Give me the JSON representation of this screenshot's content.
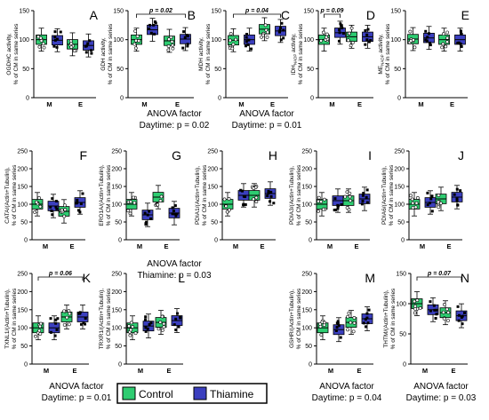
{
  "colors": {
    "control": "#2ecc71",
    "thiamine": "#3b3fbf",
    "axis": "#000000"
  },
  "legend": {
    "items": [
      {
        "label": "Control",
        "color": "#2ecc71"
      },
      {
        "label": "Thiamine",
        "color": "#3b3fbf"
      }
    ]
  },
  "anova_notes": [
    {
      "line1": "ANOVA factor",
      "line2": "Daytime: p = 0.02"
    },
    {
      "line1": "ANOVA factor",
      "line2": "Daytime: p = 0.01"
    },
    {
      "line1": "ANOVA factor",
      "line2": "Thiamine: p = 0.03"
    },
    {
      "line1": "ANOVA factor",
      "line2": "Daytime: p = 0.01"
    },
    {
      "line1": "ANOVA factor",
      "line2": "Daytime: p = 0.04"
    },
    {
      "line1": "ANOVA factor",
      "line2": "Daytime: p = 0.03"
    }
  ],
  "chart_data": [
    {
      "panel": "A",
      "type": "box",
      "ylabel": [
        "OGDHC activity,",
        "% of CM in same series"
      ],
      "categories": [
        "M",
        "E"
      ],
      "ylim": [
        0,
        150
      ],
      "yticks": [
        0,
        50,
        100,
        150
      ],
      "series": [
        {
          "name": "Control",
          "values": [
            100,
            92
          ]
        },
        {
          "name": "Thiamine",
          "values": [
            99,
            90
          ]
        }
      ],
      "sig": null
    },
    {
      "panel": "B",
      "type": "box",
      "ylabel": [
        "GDH activity,",
        "% of CM in same series"
      ],
      "categories": [
        "M",
        "E"
      ],
      "ylim": [
        0,
        150
      ],
      "yticks": [
        0,
        50,
        100,
        150
      ],
      "series": [
        {
          "name": "Control",
          "values": [
            100,
            98
          ]
        },
        {
          "name": "Thiamine",
          "values": [
            117,
            101
          ]
        }
      ],
      "sig": {
        "label": "p = 0.02",
        "from": 0,
        "to": 1
      }
    },
    {
      "panel": "C",
      "type": "box",
      "ylabel": [
        "MDH activity,",
        "% of CM in same series"
      ],
      "categories": [
        "M",
        "E"
      ],
      "ylim": [
        0,
        150
      ],
      "yticks": [
        0,
        50,
        100,
        150
      ],
      "series": [
        {
          "name": "Control",
          "values": [
            99,
            118
          ]
        },
        {
          "name": "Thiamine",
          "values": [
            100,
            115
          ]
        }
      ],
      "sig": {
        "label": "p = 0.04",
        "from": 0,
        "to": 1
      }
    },
    {
      "panel": "D",
      "type": "box",
      "ylabel": [
        "IDH",
        "% of CM in same series"
      ],
      "ylabel_sub": "NADP",
      "ylabel_tail": " activity,",
      "categories": [
        "M",
        "E"
      ],
      "ylim": [
        0,
        150
      ],
      "yticks": [
        0,
        50,
        100,
        150
      ],
      "series": [
        {
          "name": "Control",
          "values": [
            100,
            105
          ]
        },
        {
          "name": "Thiamine",
          "values": [
            112,
            105
          ]
        }
      ],
      "sig": {
        "label": "p = 0.09",
        "from": 0,
        "to": 0
      }
    },
    {
      "panel": "E",
      "type": "box",
      "ylabel": [
        "ME",
        "% of CM in same series"
      ],
      "ylabel_sub": "NADP",
      "ylabel_tail": " activity,",
      "categories": [
        "M",
        "E"
      ],
      "ylim": [
        0,
        150
      ],
      "yticks": [
        0,
        50,
        100,
        150
      ],
      "series": [
        {
          "name": "Control",
          "values": [
            101,
            100
          ]
        },
        {
          "name": "Thiamine",
          "values": [
            103,
            100
          ]
        }
      ],
      "sig": null
    },
    {
      "panel": "F",
      "type": "box",
      "ylabel": [
        "CATA/(Actin+Tubulin),",
        "% of CM in same series"
      ],
      "categories": [
        "M",
        "E"
      ],
      "ylim": [
        0,
        250
      ],
      "yticks": [
        0,
        50,
        100,
        150,
        200,
        250
      ],
      "series": [
        {
          "name": "Control",
          "values": [
            100,
            80
          ]
        },
        {
          "name": "Thiamine",
          "values": [
            95,
            105
          ]
        }
      ],
      "sig": null
    },
    {
      "panel": "G",
      "type": "box",
      "ylabel": [
        "ERO1A/(Actin+Tubulin),",
        "% of CM in same series"
      ],
      "categories": [
        "M",
        "E"
      ],
      "ylim": [
        0,
        250
      ],
      "yticks": [
        0,
        50,
        100,
        150,
        200,
        250
      ],
      "series": [
        {
          "name": "Control",
          "values": [
            100,
            120
          ]
        },
        {
          "name": "Thiamine",
          "values": [
            70,
            75
          ]
        }
      ],
      "sig": null
    },
    {
      "panel": "H",
      "type": "box",
      "ylabel": [
        "PDIA1/(Actin+Tubulin),",
        "% of CM in same series"
      ],
      "categories": [
        "M",
        "E"
      ],
      "ylim": [
        0,
        250
      ],
      "yticks": [
        0,
        50,
        100,
        150,
        200,
        250
      ],
      "series": [
        {
          "name": "Control",
          "values": [
            100,
            125
          ]
        },
        {
          "name": "Thiamine",
          "values": [
            125,
            130
          ]
        }
      ],
      "sig": null
    },
    {
      "panel": "I",
      "type": "box",
      "ylabel": [
        "PDIA3/(Actin+Tubulin),",
        "% of CM in same series"
      ],
      "categories": [
        "M",
        "E"
      ],
      "ylim": [
        0,
        250
      ],
      "yticks": [
        0,
        50,
        100,
        150,
        200,
        250
      ],
      "series": [
        {
          "name": "Control",
          "values": [
            100,
            110
          ]
        },
        {
          "name": "Thiamine",
          "values": [
            110,
            115
          ]
        }
      ],
      "sig": null
    },
    {
      "panel": "J",
      "type": "box",
      "ylabel": [
        "PDIA6/(Actin+Tubulin),",
        "% of CM in same series"
      ],
      "categories": [
        "M",
        "E"
      ],
      "ylim": [
        0,
        250
      ],
      "yticks": [
        0,
        50,
        100,
        150,
        200,
        250
      ],
      "series": [
        {
          "name": "Control",
          "values": [
            100,
            115
          ]
        },
        {
          "name": "Thiamine",
          "values": [
            105,
            120
          ]
        }
      ],
      "sig": null
    },
    {
      "panel": "K",
      "type": "box",
      "ylabel": [
        "TXNL1/(Actin+Tubulin),",
        "% of CM in same series"
      ],
      "categories": [
        "M",
        "E"
      ],
      "ylim": [
        0,
        250
      ],
      "yticks": [
        0,
        50,
        100,
        150,
        200,
        250
      ],
      "series": [
        {
          "name": "Control",
          "values": [
            100,
            130
          ]
        },
        {
          "name": "Thiamine",
          "values": [
            100,
            130
          ]
        }
      ],
      "sig": {
        "label": "p = 0.06",
        "from": 0,
        "to": 1
      }
    },
    {
      "panel": "L",
      "type": "box",
      "ylabel": [
        "TRXR1/(Actin+Tubulin),",
        "% of CM in same series"
      ],
      "categories": [
        "M",
        "E"
      ],
      "ylim": [
        0,
        250
      ],
      "yticks": [
        0,
        50,
        100,
        150,
        200,
        250
      ],
      "series": [
        {
          "name": "Control",
          "values": [
            100,
            115
          ]
        },
        {
          "name": "Thiamine",
          "values": [
            105,
            120
          ]
        }
      ],
      "sig": null
    },
    {
      "panel": "M",
      "type": "box",
      "ylabel": [
        "GSHR/(Actin+Tubulin),",
        "% of CM in same series"
      ],
      "categories": [
        "M",
        "E"
      ],
      "ylim": [
        0,
        250
      ],
      "yticks": [
        0,
        50,
        100,
        150,
        200,
        250
      ],
      "series": [
        {
          "name": "Control",
          "values": [
            100,
            115
          ]
        },
        {
          "name": "Thiamine",
          "values": [
            95,
            125
          ]
        }
      ],
      "sig": null
    },
    {
      "panel": "N",
      "type": "box",
      "ylabel": [
        "THTM/(Actin+Tubulin),",
        "% of CM in same series"
      ],
      "categories": [
        "M",
        "E"
      ],
      "ylim": [
        0,
        150
      ],
      "yticks": [
        0,
        50,
        100,
        150
      ],
      "series": [
        {
          "name": "Control",
          "values": [
            100,
            85
          ]
        },
        {
          "name": "Thiamine",
          "values": [
            90,
            80
          ]
        }
      ],
      "sig": {
        "label": "p = 0.07",
        "from": 0,
        "to": 1
      }
    }
  ]
}
